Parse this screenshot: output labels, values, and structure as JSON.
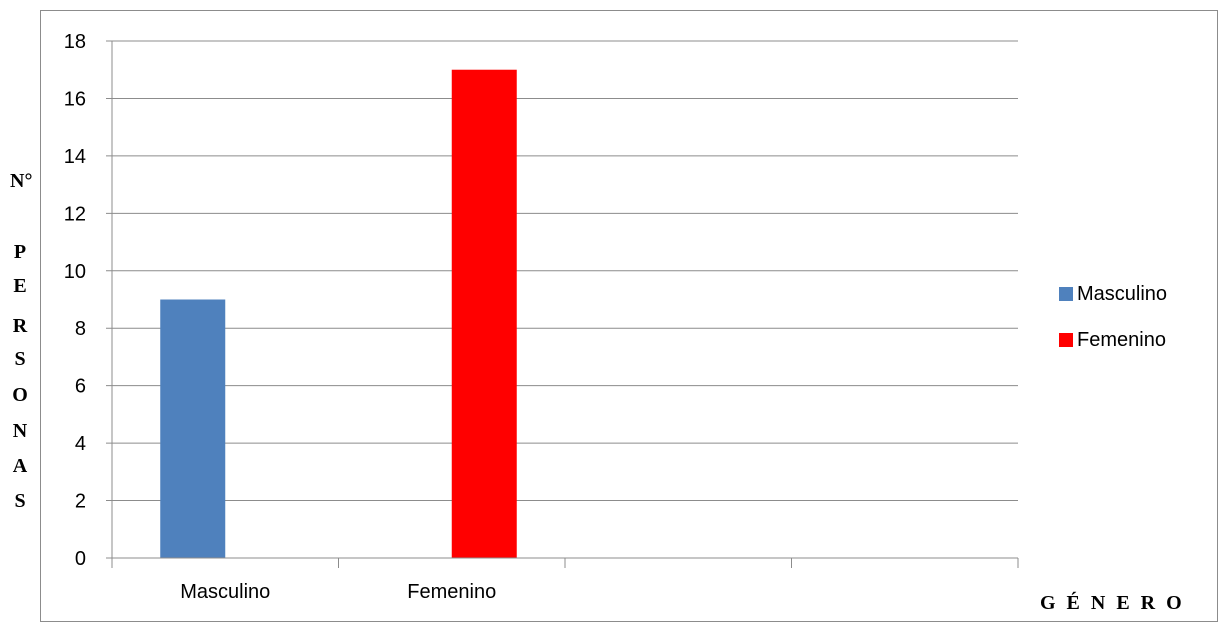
{
  "chart_data": {
    "type": "bar",
    "categories": [
      "Masculino",
      "Femenino",
      "",
      ""
    ],
    "series": [
      {
        "name": "Masculino",
        "values": [
          9,
          null,
          null,
          null
        ],
        "color": "#4f81bd"
      },
      {
        "name": "Femenino",
        "values": [
          null,
          17,
          null,
          null
        ],
        "color": "#ff0000"
      }
    ],
    "xlabel": "G É N E R O",
    "ylabel_letters": [
      "N°",
      "P",
      "E",
      "R",
      "S",
      "O",
      "N",
      "A",
      "S"
    ],
    "ylim": [
      0,
      18
    ],
    "yticks": [
      0,
      2,
      4,
      6,
      8,
      10,
      12,
      14,
      16,
      18
    ],
    "grid": true,
    "legend_position": "right"
  }
}
